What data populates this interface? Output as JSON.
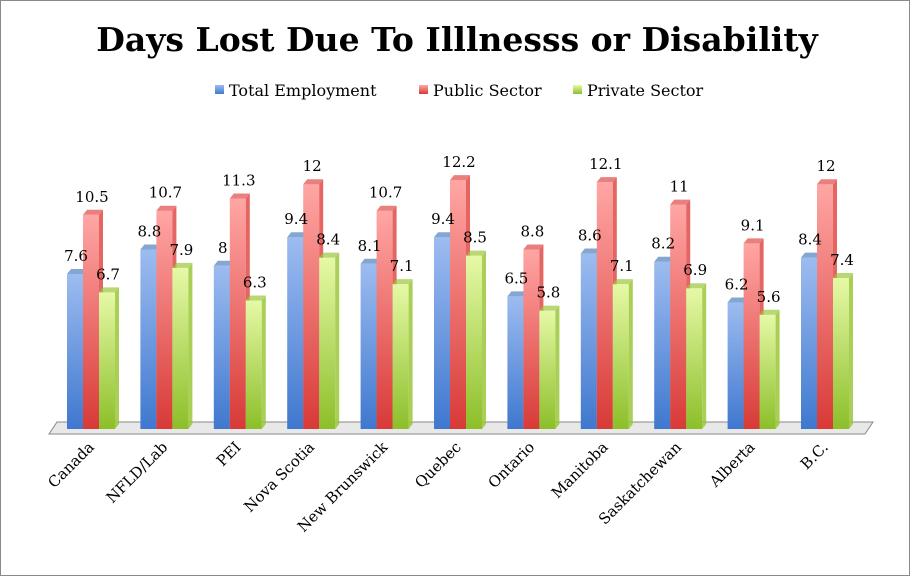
{
  "chart_data": {
    "type": "bar",
    "title": "Days Lost Due To Illlnesss or Disability",
    "xlabel": "",
    "ylabel": "",
    "ylim": [
      0,
      13
    ],
    "grid": false,
    "legend_position": "top",
    "categories": [
      "Canada",
      "NFLD/Lab",
      "PEI",
      "Nova Scotia",
      "New Brunswick",
      "Quebec",
      "Ontario",
      "Manitoba",
      "Saskatchewan",
      "Alberta",
      "B.C."
    ],
    "series": [
      {
        "name": "Total Employment",
        "color": "#4f81bd",
        "values": [
          7.6,
          8.8,
          8,
          9.4,
          8.1,
          9.4,
          6.5,
          8.6,
          8.2,
          6.2,
          8.4
        ]
      },
      {
        "name": "Public Sector",
        "color": "#e04a48",
        "values": [
          10.5,
          10.7,
          11.3,
          12,
          10.7,
          12.2,
          8.8,
          12.1,
          11,
          9.1,
          12
        ]
      },
      {
        "name": "Private Sector",
        "color": "#9bc73a",
        "values": [
          6.7,
          7.9,
          6.3,
          8.4,
          7.1,
          8.5,
          5.8,
          7.1,
          6.9,
          5.6,
          7.4
        ]
      }
    ]
  }
}
